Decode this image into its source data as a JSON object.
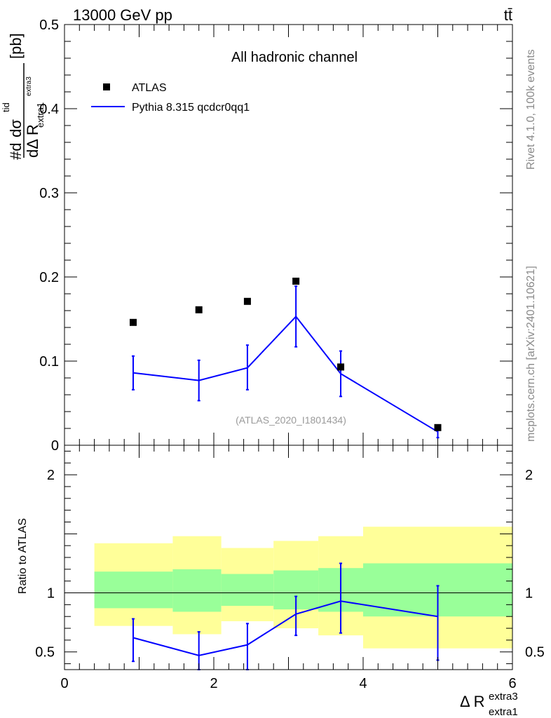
{
  "header": {
    "energy_label": "13000 GeV pp",
    "process_label": "tt̄"
  },
  "side_labels": {
    "rivet": "Rivet 4.1.0,  100k events",
    "mcplots": "mcplots.cern.ch [arXiv:2401.10621]"
  },
  "chart_data": [
    {
      "type": "scatter",
      "title": "All hadronic channel",
      "watermark": "(ATLAS_2020_I1801434)",
      "xlabel": "Δ R extra1 extra3",
      "ylabel": "#d dσ^tid / dΔ R extra1 extra3 [pb]",
      "ylabel_parts": {
        "prefix": "#d",
        "num": "dσ",
        "num_sup": "tid",
        "den": "dΔ R",
        "den_sub": "extra1",
        "den_sup": "extra3",
        "unit": "[pb]"
      },
      "xlim": [
        0,
        6
      ],
      "ylim": [
        0,
        0.5
      ],
      "yticks": [
        0,
        0.1,
        0.2,
        0.3,
        0.4,
        0.5
      ],
      "ytick_labels": [
        "0",
        "0.1",
        "0.2",
        "0.3",
        "0.4",
        "0.5"
      ],
      "legend_position": "top-left",
      "series": [
        {
          "name": "ATLAS",
          "style": "markers",
          "color": "#000000",
          "x": [
            0.92,
            1.8,
            2.45,
            3.1,
            3.7,
            5.0
          ],
          "y": [
            0.146,
            0.161,
            0.171,
            0.195,
            0.093,
            0.021
          ]
        },
        {
          "name": "Pythia 8.315 qcdcr0qq1",
          "style": "line",
          "color": "#0000ff",
          "x": [
            0.92,
            1.8,
            2.45,
            3.1,
            3.7,
            5.0
          ],
          "y": [
            0.086,
            0.077,
            0.092,
            0.153,
            0.085,
            0.016
          ],
          "yerr_low": [
            0.066,
            0.053,
            0.066,
            0.117,
            0.058,
            0.009
          ],
          "yerr_high": [
            0.106,
            0.101,
            0.119,
            0.189,
            0.112,
            0.021
          ]
        }
      ]
    },
    {
      "type": "line",
      "title": "",
      "xlabel": "Δ R extra1 extra3",
      "xlabel_parts": {
        "main": "Δ R",
        "sub": "extra1",
        "sup": "extra3"
      },
      "ylabel": "Ratio to ATLAS",
      "xlim": [
        0,
        6
      ],
      "ylim": [
        0.35,
        2.25
      ],
      "xticks": [
        0,
        2,
        4,
        6
      ],
      "xtick_labels": [
        "0",
        "2",
        "4",
        "6"
      ],
      "yticks": [
        0.5,
        1,
        2
      ],
      "ytick_labels": [
        "0.5",
        "1",
        "2"
      ],
      "reference_line": 1,
      "bands": {
        "edges": [
          0.4,
          1.45,
          2.1,
          2.8,
          3.4,
          4.0,
          6.0
        ],
        "outer_low": [
          0.72,
          0.65,
          0.76,
          0.7,
          0.64,
          0.53
        ],
        "outer_high": [
          1.42,
          1.48,
          1.38,
          1.44,
          1.48,
          1.56
        ],
        "inner_low": [
          0.87,
          0.84,
          0.89,
          0.86,
          0.84,
          0.8
        ],
        "inner_high": [
          1.18,
          1.2,
          1.16,
          1.19,
          1.21,
          1.25
        ],
        "outer_color": "#ffff99",
        "inner_color": "#99ff99"
      },
      "series": [
        {
          "name": "Pythia 8.315 qcdcr0qq1",
          "color": "#0000ff",
          "x": [
            0.92,
            1.8,
            2.45,
            3.1,
            3.7,
            5.0
          ],
          "y": [
            0.62,
            0.47,
            0.56,
            0.82,
            0.93,
            0.8
          ],
          "yerr_low": [
            0.42,
            0.3,
            0.34,
            0.64,
            0.66,
            0.43
          ],
          "yerr_high": [
            0.78,
            0.67,
            0.74,
            0.97,
            1.25,
            1.06
          ]
        }
      ]
    }
  ]
}
